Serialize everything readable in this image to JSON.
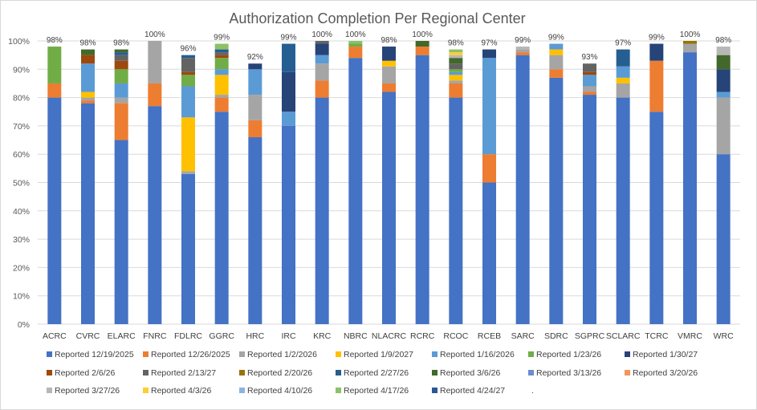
{
  "chart_data": {
    "type": "bar",
    "stacked": true,
    "title": "Authorization Completion Per Regional Center",
    "xlabel": "",
    "ylabel": "",
    "ylim": [
      0,
      100
    ],
    "y_ticks": [
      "0%",
      "10%",
      "20%",
      "30%",
      "40%",
      "50%",
      "60%",
      "70%",
      "80%",
      "90%",
      "100%"
    ],
    "grid": true,
    "legend_position": "bottom",
    "categories": [
      "ACRC",
      "CVRC",
      "ELARC",
      "FNRC",
      "FDLRC",
      "GGRC",
      "HRC",
      "IRC",
      "KRC",
      "NBRC",
      "NLACRC",
      "RCRC",
      "RCOC",
      "RCEB",
      "SARC",
      "SDRC",
      "SGPRC",
      "SCLARC",
      "TCRC",
      "VMRC",
      "WRC"
    ],
    "totals_labels": [
      "98%",
      "98%",
      "98%",
      "100%",
      "96%",
      "99%",
      "92%",
      "99%",
      "100%",
      "100%",
      "98%",
      "100%",
      "98%",
      "97%",
      "99%",
      "99%",
      "93%",
      "97%",
      "99%",
      "100%",
      "98%"
    ],
    "series": [
      {
        "name": "Reported 12/19/2025",
        "color": "#4472C4",
        "values": [
          80,
          78,
          65,
          77,
          53,
          75,
          66,
          70,
          80,
          94,
          82,
          95,
          80,
          50,
          95,
          87,
          81,
          80,
          75,
          96,
          60
        ]
      },
      {
        "name": "Reported 12/26/2025",
        "color": "#ED7D31",
        "values": [
          5,
          1,
          13,
          8,
          0,
          5,
          6,
          0,
          6,
          4,
          3,
          3,
          5,
          10,
          1,
          3,
          1,
          0,
          18,
          0,
          0
        ]
      },
      {
        "name": "Reported 1/2/2026",
        "color": "#A5A5A5",
        "values": [
          0,
          1,
          2,
          15,
          1,
          1,
          9,
          0,
          6,
          0,
          6,
          0,
          1,
          0,
          1,
          5,
          2,
          5,
          0,
          3,
          20
        ]
      },
      {
        "name": "Reported 1/9/2027",
        "color": "#FFC000",
        "values": [
          0,
          2,
          0,
          0,
          19,
          7,
          0,
          0,
          0,
          0,
          2,
          0,
          2,
          0,
          0,
          2,
          0,
          2,
          0,
          0,
          0
        ]
      },
      {
        "name": "Reported 1/16/2026",
        "color": "#5B9BD5",
        "values": [
          0,
          10,
          5,
          0,
          11,
          2,
          9,
          5,
          3,
          0,
          0,
          0,
          1,
          34,
          0,
          2,
          4,
          4,
          0,
          0,
          2
        ]
      },
      {
        "name": "Reported 1/23/26",
        "color": "#70AD47",
        "values": [
          13,
          0,
          5,
          0,
          4,
          4,
          0,
          0,
          0,
          1,
          0,
          0,
          1,
          0,
          0,
          0,
          0,
          0,
          0,
          0,
          0
        ]
      },
      {
        "name": "Reported 1/30/27",
        "color": "#264478",
        "values": [
          0,
          0,
          0,
          0,
          0,
          0,
          2,
          14,
          4,
          0,
          5,
          0,
          0,
          3,
          0,
          0,
          0,
          0,
          6,
          0,
          8
        ]
      },
      {
        "name": "Reported 2/6/26",
        "color": "#9E480E",
        "values": [
          0,
          3,
          3,
          0,
          1,
          1,
          0,
          0,
          0,
          0,
          0,
          0,
          0,
          0,
          0,
          0,
          1,
          0,
          0,
          0,
          0
        ]
      },
      {
        "name": "Reported 2/13/27",
        "color": "#636363",
        "values": [
          0,
          0,
          2,
          0,
          5,
          1,
          0,
          0,
          1,
          0,
          0,
          0,
          2,
          0,
          0,
          0,
          3,
          0,
          0,
          0,
          0
        ]
      },
      {
        "name": "Reported 2/20/26",
        "color": "#997300",
        "values": [
          0,
          0,
          0,
          0,
          0,
          0,
          0,
          0,
          0,
          0,
          0,
          0,
          0,
          0,
          0,
          0,
          0,
          0,
          0,
          1,
          0
        ]
      },
      {
        "name": "Reported 2/27/26",
        "color": "#255E91",
        "values": [
          0,
          0,
          1,
          0,
          1,
          1,
          0,
          10,
          0,
          0,
          0,
          0,
          0,
          0,
          0,
          0,
          0,
          6,
          0,
          0,
          0
        ]
      },
      {
        "name": "Reported 3/6/26",
        "color": "#43682B",
        "values": [
          0,
          2,
          1,
          0,
          0,
          0,
          0,
          0,
          0,
          0,
          0,
          2,
          2,
          0,
          0,
          0,
          0,
          0,
          0,
          0,
          5
        ]
      },
      {
        "name": "Reported 3/13/26",
        "color": "#698ED0",
        "values": [
          0,
          0,
          0,
          0,
          0,
          0,
          0,
          0,
          0,
          0,
          0,
          0,
          0,
          0,
          0,
          0,
          0,
          0,
          0,
          0,
          0
        ]
      },
      {
        "name": "Reported 3/20/26",
        "color": "#F1975A",
        "values": [
          0,
          0,
          0,
          0,
          0,
          0,
          0,
          0,
          0,
          0,
          0,
          0,
          0,
          0,
          0,
          0,
          0,
          0,
          0,
          0,
          0
        ]
      },
      {
        "name": "Reported 3/27/26",
        "color": "#B7B7B7",
        "values": [
          0,
          0,
          0,
          0,
          0,
          0,
          0,
          0,
          0,
          0,
          0,
          0,
          1,
          0,
          1,
          0,
          0,
          0,
          0,
          0,
          3
        ]
      },
      {
        "name": "Reported 4/3/26",
        "color": "#FFCD33",
        "values": [
          0,
          0,
          0,
          0,
          0,
          0,
          0,
          0,
          0,
          0,
          0,
          0,
          1,
          0,
          0,
          0,
          0,
          0,
          0,
          0,
          0
        ]
      },
      {
        "name": "Reported 4/10/26",
        "color": "#8CB4E2",
        "values": [
          0,
          0,
          0,
          0,
          0,
          0,
          0,
          0,
          0,
          0,
          0,
          0,
          0,
          0,
          0,
          0,
          0,
          0,
          0,
          0,
          0
        ]
      },
      {
        "name": "Reported 4/17/26",
        "color": "#8CC168",
        "values": [
          0,
          0,
          0,
          0,
          0,
          2,
          0,
          0,
          0,
          1,
          0,
          0,
          1,
          0,
          0,
          0,
          0,
          0,
          0,
          0,
          0
        ]
      },
      {
        "name": "Reported 4/24/27",
        "color": "#2F5597",
        "values": [
          0,
          0,
          0,
          0,
          0,
          0,
          0,
          0,
          0,
          0,
          0,
          0,
          0,
          0,
          0,
          0,
          0,
          0,
          0,
          0,
          0
        ]
      }
    ],
    "legend_extra_mark": "."
  }
}
